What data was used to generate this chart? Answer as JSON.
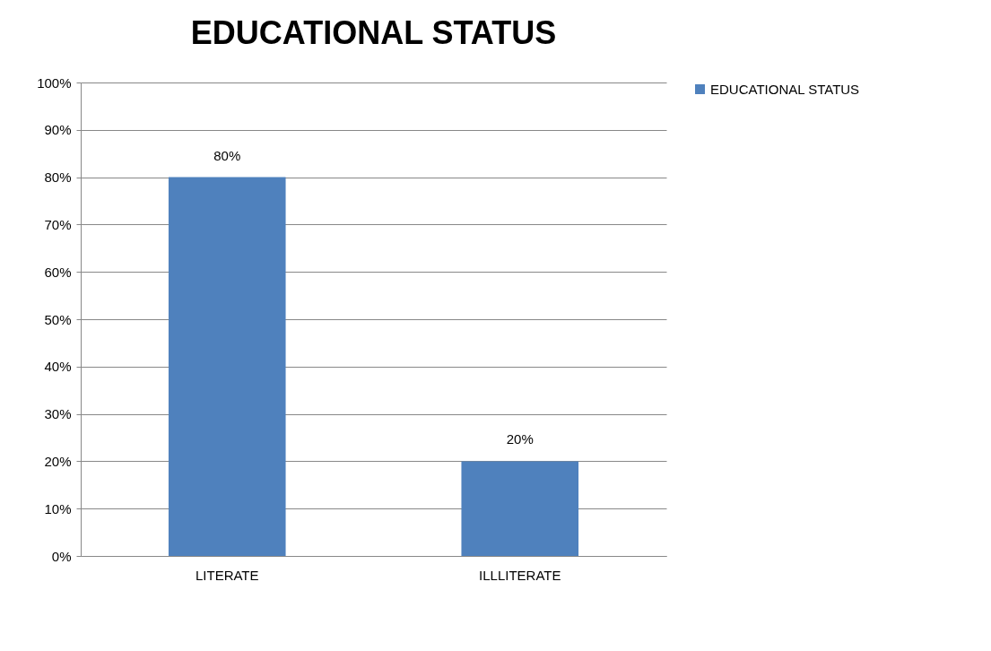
{
  "chart_data": {
    "type": "bar",
    "title": "EDUCATIONAL STATUS",
    "categories": [
      "LITERATE",
      "ILLLITERATE"
    ],
    "series": [
      {
        "name": "EDUCATIONAL STATUS",
        "color": "#4f81bd",
        "values": [
          80,
          20
        ],
        "value_labels": [
          "80%",
          "20%"
        ]
      }
    ],
    "ylim": [
      0,
      100
    ],
    "yticks": [
      {
        "value": 0,
        "label": "0%"
      },
      {
        "value": 10,
        "label": "10%"
      },
      {
        "value": 20,
        "label": "20%"
      },
      {
        "value": 30,
        "label": "30%"
      },
      {
        "value": 40,
        "label": "40%"
      },
      {
        "value": 50,
        "label": "50%"
      },
      {
        "value": 60,
        "label": "60%"
      },
      {
        "value": 70,
        "label": "70%"
      },
      {
        "value": 80,
        "label": "80%"
      },
      {
        "value": 90,
        "label": "90%"
      },
      {
        "value": 100,
        "label": "100%"
      }
    ],
    "grid": "y",
    "legend": "right"
  }
}
